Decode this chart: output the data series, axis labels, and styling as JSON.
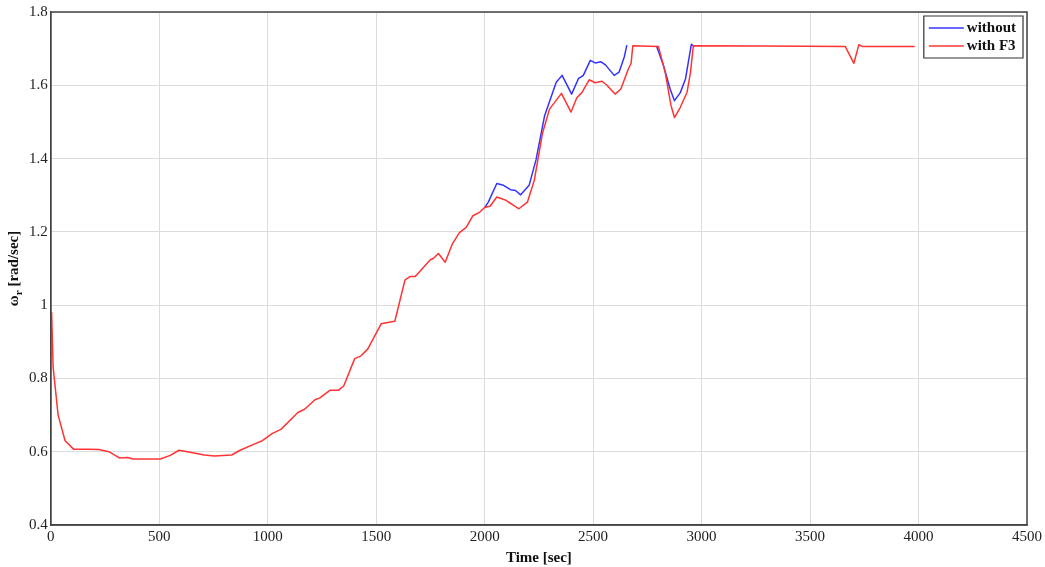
{
  "chart_data": {
    "type": "line",
    "xlabel": "Time [sec]",
    "ylabel": "ω$_{r}$ [rad/sec]",
    "xlim": [
      0,
      4500
    ],
    "ylim": [
      0.4,
      1.8
    ],
    "xticks": [
      0,
      500,
      1000,
      1500,
      2000,
      2500,
      3000,
      3500,
      4000,
      4500
    ],
    "yticks": [
      0.4,
      0.6,
      0.8,
      1,
      1.2,
      1.4,
      1.6,
      1.8
    ],
    "grid": true,
    "legend": "top right",
    "marker": "none",
    "line_style": "solid",
    "series": [
      {
        "name": "without",
        "color": "#3333ff",
        "x": [
          2001,
          2017,
          2056,
          2087,
          2119,
          2142,
          2166,
          2205,
          2237,
          2276,
          2330,
          2357,
          2401,
          2432,
          2455,
          2487,
          2510,
          2537,
          2558,
          2597,
          2620,
          2644,
          2655,
          2720,
          2793,
          2824,
          2855,
          2875,
          2902,
          2926,
          2953,
          2965
        ],
        "values": [
          1.267,
          1.281,
          1.332,
          1.327,
          1.315,
          1.313,
          1.301,
          1.327,
          1.397,
          1.516,
          1.608,
          1.627,
          1.576,
          1.618,
          1.627,
          1.668,
          1.661,
          1.664,
          1.655,
          1.627,
          1.636,
          1.678,
          1.708,
          null,
          1.706,
          1.655,
          1.59,
          1.558,
          1.58,
          1.618,
          1.712,
          1.706
        ]
      },
      {
        "name": "with F3",
        "color": "#ff3333",
        "x": [
          4,
          11,
          34,
          66,
          105,
          175,
          222,
          268,
          316,
          355,
          379,
          505,
          551,
          591,
          630,
          708,
          755,
          834,
          873,
          943,
          975,
          1022,
          1061,
          1139,
          1170,
          1218,
          1241,
          1288,
          1327,
          1351,
          1401,
          1429,
          1461,
          1523,
          1547,
          1586,
          1633,
          1656,
          1680,
          1750,
          1765,
          1787,
          1818,
          1852,
          1884,
          1915,
          1946,
          1978,
          2001,
          2025,
          2056,
          2095,
          2134,
          2158,
          2197,
          2229,
          2267,
          2299,
          2354,
          2398,
          2425,
          2448,
          2482,
          2510,
          2541,
          2564,
          2601,
          2628,
          2660,
          2675,
          2683,
          2801,
          2832,
          2859,
          2875,
          2902,
          2933,
          2949,
          2962,
          3662,
          3702,
          3725,
          3740,
          3980
        ],
        "values": [
          0.98,
          0.83,
          0.7,
          0.63,
          0.607,
          0.607,
          0.606,
          0.6,
          0.583,
          0.584,
          0.58,
          0.58,
          0.59,
          0.604,
          0.6,
          0.591,
          0.588,
          0.591,
          0.604,
          0.622,
          0.63,
          0.65,
          0.661,
          0.707,
          0.716,
          0.742,
          0.747,
          0.768,
          0.768,
          0.78,
          0.854,
          0.861,
          0.88,
          0.949,
          0.952,
          0.956,
          1.069,
          1.078,
          1.078,
          1.124,
          1.128,
          1.141,
          1.117,
          1.168,
          1.198,
          1.212,
          1.244,
          1.254,
          1.267,
          1.27,
          1.295,
          1.287,
          1.272,
          1.263,
          1.281,
          1.341,
          1.47,
          1.535,
          1.578,
          1.527,
          1.566,
          1.58,
          1.615,
          1.607,
          1.611,
          1.6,
          1.576,
          1.59,
          1.641,
          1.66,
          1.708,
          1.706,
          1.636,
          1.545,
          1.512,
          1.54,
          1.581,
          1.636,
          1.708,
          1.706,
          1.66,
          1.711,
          1.706,
          1.706
        ]
      }
    ]
  }
}
